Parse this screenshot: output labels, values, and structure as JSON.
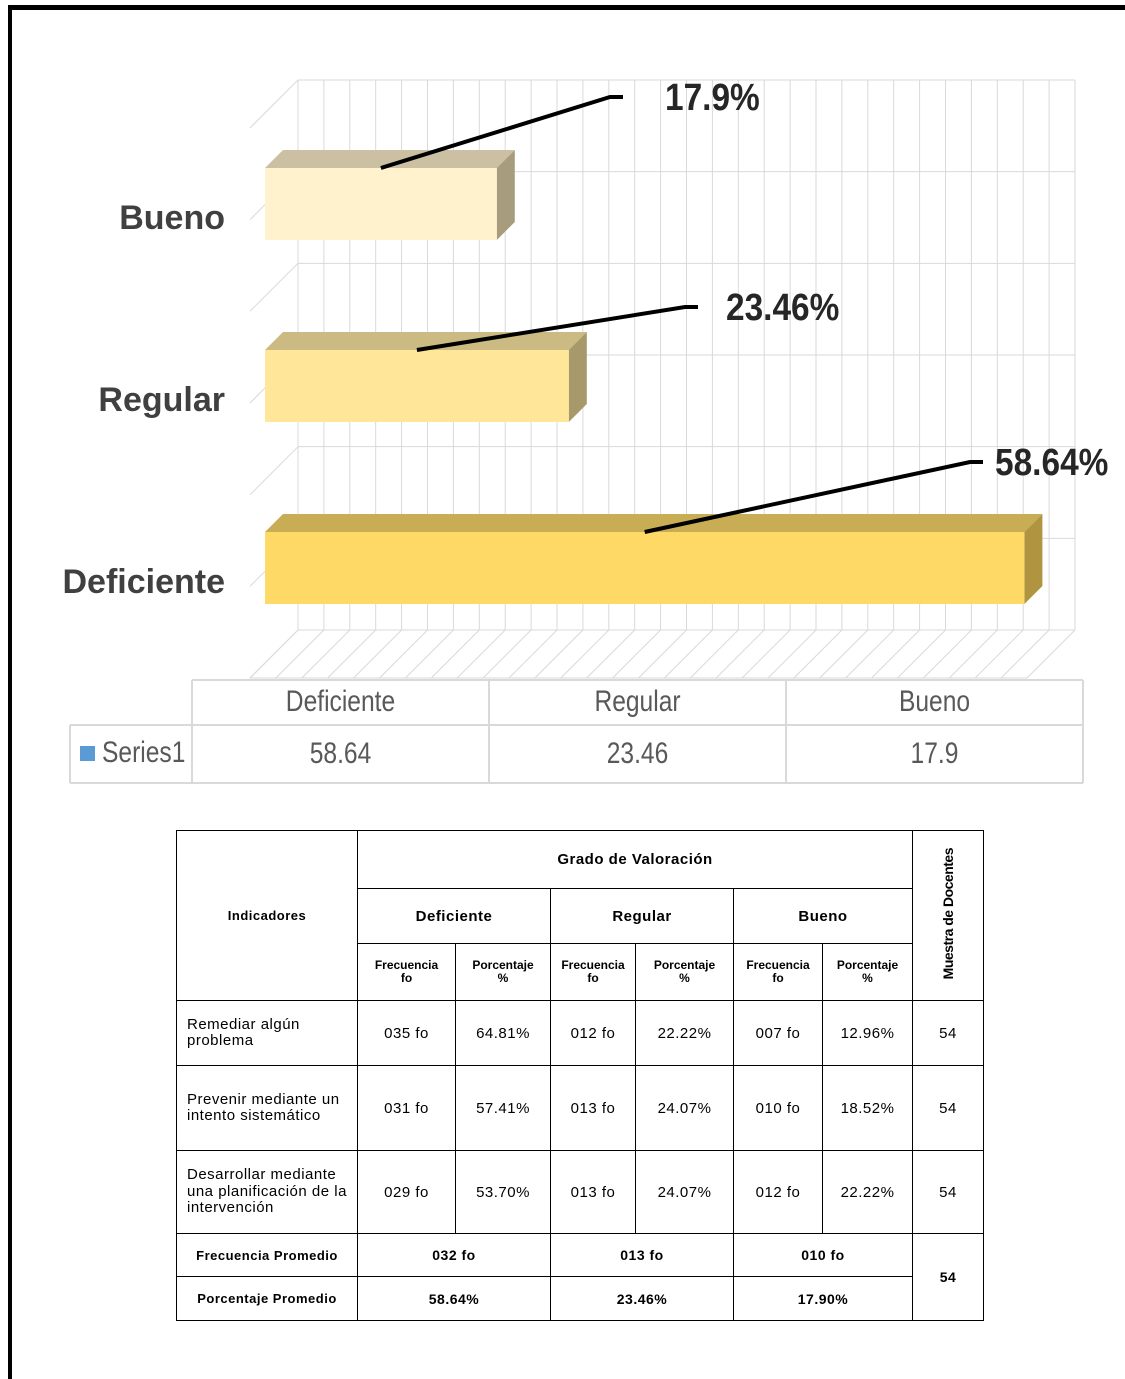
{
  "chart_data": {
    "type": "bar3d_horizontal",
    "categories": [
      "Deficiente",
      "Regular",
      "Bueno"
    ],
    "series": [
      {
        "name": "Series1",
        "color": "#5b9bd5",
        "values": [
          58.64,
          23.46,
          17.9
        ],
        "value_labels": [
          "58.64%",
          "23.46%",
          "17.9%"
        ]
      }
    ],
    "point_colors": [
      {
        "front": "#ffd966",
        "top": "#c9ad55",
        "side": "#b0943f"
      },
      {
        "front": "#ffe699",
        "top": "#cbbb82",
        "side": "#a8996a"
      },
      {
        "front": "#fff2cc",
        "top": "#cbc0a2",
        "side": "#a89c7e"
      }
    ],
    "xlim": [
      0,
      60
    ],
    "xticks": [
      0,
      2,
      4,
      6,
      8,
      10,
      12,
      14,
      16,
      18,
      20,
      22,
      24,
      26,
      28,
      30,
      32,
      34,
      36,
      38,
      40,
      42,
      44,
      46,
      48,
      50,
      52,
      54,
      56,
      58,
      60
    ],
    "grid": true,
    "data_table": true
  },
  "table": {
    "indicator_header": "Indicadores",
    "title": "Grado de Valoración",
    "sample_header": "Muestra de Docentes",
    "groups": [
      "Deficiente",
      "Regular",
      "Bueno"
    ],
    "subheaders": [
      {
        "label": "Frecuencia",
        "unit": "fo"
      },
      {
        "label": "Porcentaje",
        "unit": "%"
      },
      {
        "label": "Frecuencia",
        "unit": "fo"
      },
      {
        "label": "Porcentaje",
        "unit": "%"
      },
      {
        "label": "Frecuencia",
        "unit": "fo"
      },
      {
        "label": "Porcentaje",
        "unit": "%"
      }
    ],
    "rows": [
      {
        "indicator": "Remediar algún problema",
        "cells": [
          "035 fo",
          "64.81%",
          "012 fo",
          "22.22%",
          "007 fo",
          "12.96%"
        ],
        "sample": 54
      },
      {
        "indicator": "Prevenir mediante un intento sistemático",
        "cells": [
          "031 fo",
          "57.41%",
          "013 fo",
          "24.07%",
          "010 fo",
          "18.52%"
        ],
        "sample": 54
      },
      {
        "indicator": "Desarrollar mediante una planificación de la intervención",
        "cells": [
          "029 fo",
          "53.70%",
          "013 fo",
          "24.07%",
          "012 fo",
          "22.22%"
        ],
        "sample": 54
      }
    ],
    "frequency_avg": {
      "label": "Frecuencia Promedio",
      "cells": [
        "032 fo",
        "013 fo",
        "010 fo"
      ]
    },
    "percentage_avg": {
      "label": "Porcentaje Promedio",
      "cells": [
        "58.64%",
        "23.46%",
        "17.90%"
      ]
    },
    "summary_sample": 54
  }
}
